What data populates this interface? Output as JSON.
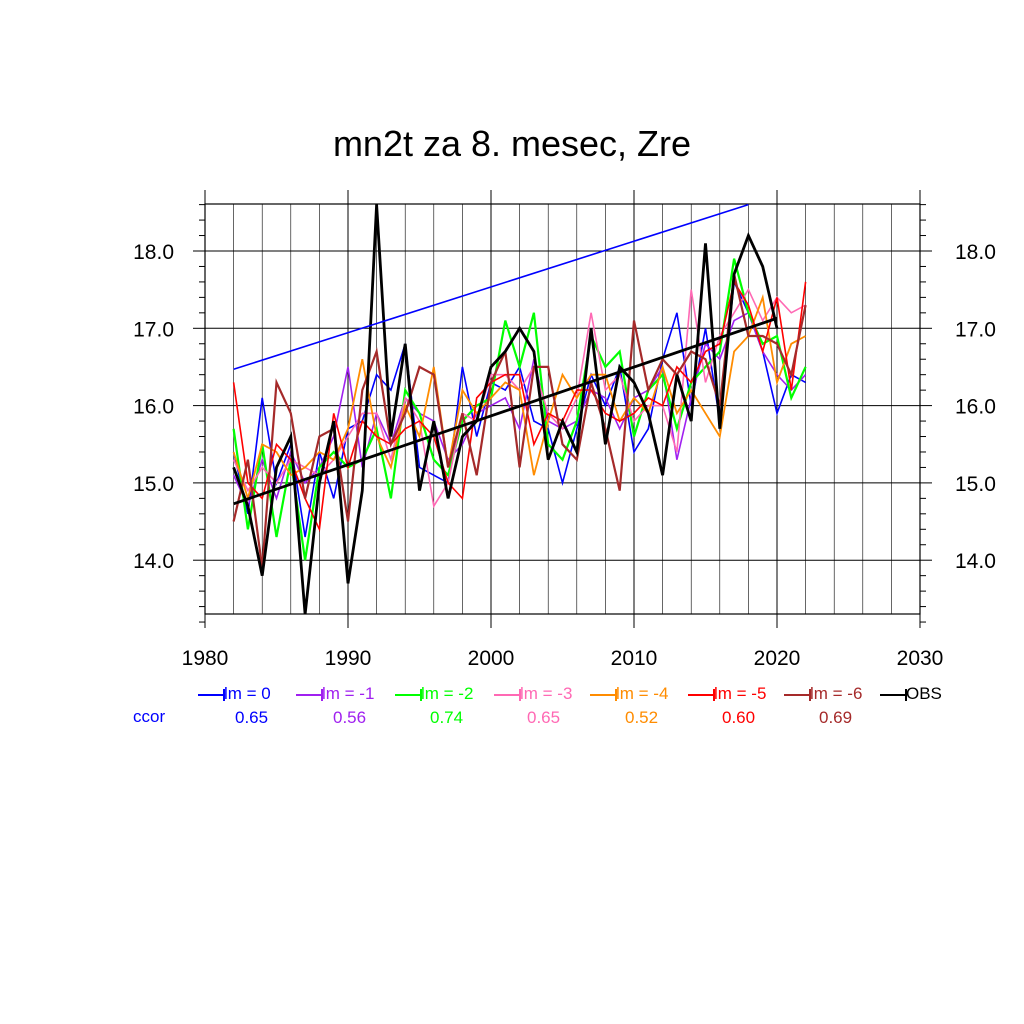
{
  "title": "mn2t za 8. mesec, Zre",
  "ccor_label": "ccor",
  "chart_data": {
    "type": "line",
    "xlim": [
      1980,
      2030
    ],
    "ylim": [
      13.2,
      18.6
    ],
    "x_ticks": [
      "1980",
      "1990",
      "2000",
      "2010",
      "2020",
      "2030"
    ],
    "y_ticks": [
      "14.0",
      "15.0",
      "16.0",
      "17.0",
      "18.0"
    ],
    "grid": true,
    "series": [
      {
        "name": "lm = 0",
        "color": "#0000ff",
        "ccor": "0.65",
        "width": 1.6,
        "start": 1982,
        "values": [
          15.4,
          14.6,
          16.1,
          15.0,
          15.5,
          14.3,
          15.4,
          14.8,
          15.7,
          15.8,
          16.4,
          16.2,
          16.8,
          15.2,
          15.1,
          15.0,
          16.5,
          15.6,
          16.3,
          16.2,
          16.5,
          15.8,
          15.7,
          15.0,
          15.7,
          16.4,
          16.0,
          16.5,
          15.4,
          15.7,
          16.6,
          17.2,
          16.0,
          17.0,
          15.8,
          17.6,
          17.2,
          16.7,
          15.9,
          16.4,
          16.3
        ]
      },
      {
        "name": "lm = -1",
        "color": "#a020f0",
        "ccor": "0.56",
        "width": 1.6,
        "start": 1982,
        "values": [
          15.1,
          14.7,
          15.3,
          14.8,
          15.4,
          15.0,
          15.2,
          15.6,
          16.5,
          15.2,
          15.9,
          15.5,
          16.1,
          15.9,
          15.8,
          15.3,
          15.5,
          15.9,
          16.0,
          16.1,
          15.7,
          16.6,
          15.8,
          15.7,
          15.8,
          16.2,
          16.1,
          15.7,
          16.1,
          16.2,
          16.5,
          15.3,
          16.1,
          16.8,
          16.6,
          17.1,
          17.2,
          16.7,
          16.4,
          16.2,
          16.4
        ]
      },
      {
        "name": "lm = -2",
        "color": "#00ff00",
        "ccor": "0.74",
        "width": 2.2,
        "start": 1982,
        "values": [
          15.7,
          14.4,
          15.5,
          14.3,
          15.3,
          14.0,
          15.2,
          15.4,
          15.2,
          15.3,
          15.7,
          14.8,
          16.2,
          15.9,
          15.3,
          15.1,
          15.8,
          16.0,
          16.1,
          17.1,
          16.5,
          17.2,
          15.5,
          15.3,
          15.8,
          16.9,
          16.5,
          16.7,
          15.6,
          16.2,
          16.4,
          15.7,
          16.3,
          16.5,
          16.7,
          17.9,
          17.2,
          16.8,
          16.9,
          16.1,
          16.5
        ]
      },
      {
        "name": "lm = -3",
        "color": "#ff69b4",
        "ccor": "0.65",
        "width": 1.6,
        "start": 1982,
        "values": [
          15.3,
          14.9,
          15.2,
          15.0,
          15.3,
          15.2,
          15.1,
          15.3,
          15.6,
          15.9,
          15.9,
          15.3,
          16.1,
          15.8,
          14.7,
          15.0,
          15.9,
          15.8,
          16.4,
          16.4,
          16.2,
          16.5,
          15.9,
          15.7,
          16.1,
          17.2,
          16.2,
          16.4,
          15.8,
          16.0,
          16.0,
          15.4,
          17.5,
          16.3,
          16.9,
          17.2,
          17.5,
          17.1,
          17.4,
          17.2,
          17.3
        ]
      },
      {
        "name": "lm = -4",
        "color": "#ff8c00",
        "ccor": "0.52",
        "width": 1.8,
        "start": 1982,
        "values": [
          15.4,
          14.8,
          15.5,
          15.4,
          15.1,
          15.2,
          15.4,
          15.3,
          15.7,
          16.6,
          15.6,
          15.2,
          16.0,
          15.6,
          16.5,
          15.2,
          16.2,
          15.9,
          16.1,
          16.3,
          16.2,
          15.1,
          15.8,
          16.4,
          16.1,
          16.4,
          16.4,
          15.8,
          16.1,
          15.9,
          16.5,
          15.9,
          16.2,
          15.9,
          15.6,
          16.7,
          16.9,
          17.4,
          16.3,
          16.8,
          16.9
        ]
      },
      {
        "name": "lm = -5",
        "color": "#ff0000",
        "ccor": "0.60",
        "width": 1.6,
        "start": 1982,
        "values": [
          16.3,
          15.0,
          14.8,
          15.5,
          15.3,
          14.8,
          14.4,
          15.9,
          15.2,
          15.8,
          15.6,
          15.5,
          15.7,
          15.8,
          15.6,
          15.0,
          14.8,
          16.1,
          16.3,
          16.4,
          16.4,
          15.5,
          15.9,
          15.8,
          16.2,
          16.2,
          15.9,
          15.8,
          15.9,
          16.1,
          16.0,
          16.5,
          16.3,
          16.7,
          16.8,
          17.6,
          17.3,
          16.7,
          17.4,
          16.2,
          17.6
        ]
      },
      {
        "name": "lm = -6",
        "color": "#a52a2a",
        "ccor": "0.69",
        "width": 2.2,
        "start": 1982,
        "values": [
          14.5,
          15.3,
          13.9,
          16.3,
          15.9,
          14.8,
          15.6,
          15.7,
          14.5,
          16.2,
          16.7,
          15.5,
          15.9,
          16.5,
          16.4,
          15.2,
          15.9,
          15.1,
          16.3,
          16.7,
          15.2,
          16.5,
          16.5,
          15.5,
          15.3,
          16.3,
          15.7,
          14.9,
          17.1,
          16.2,
          16.6,
          16.4,
          16.7,
          16.6,
          16.0,
          17.7,
          16.9,
          16.9,
          16.8,
          16.4,
          17.3
        ]
      },
      {
        "name": "OBS",
        "color": "#000000",
        "ccor": "",
        "width": 2.8,
        "start": 1982,
        "values": [
          15.2,
          14.7,
          13.8,
          15.2,
          15.6,
          13.3,
          15.0,
          15.8,
          13.7,
          14.9,
          18.6,
          15.6,
          16.8,
          14.9,
          15.8,
          14.8,
          15.6,
          15.8,
          16.5,
          16.7,
          17.0,
          16.7,
          15.3,
          15.8,
          15.4,
          17.0,
          15.5,
          16.5,
          16.3,
          15.9,
          15.1,
          16.4,
          15.8,
          18.1,
          15.7,
          17.7,
          18.2,
          17.8,
          17.0
        ]
      }
    ],
    "trend_lines": [
      {
        "color": "#0000ff",
        "width": 1.6,
        "x": [
          1982,
          2018
        ],
        "y": [
          16.47,
          18.6
        ]
      },
      {
        "color": "#000000",
        "width": 2.8,
        "x": [
          1982,
          2020
        ],
        "y": [
          14.73,
          17.13
        ]
      }
    ]
  }
}
